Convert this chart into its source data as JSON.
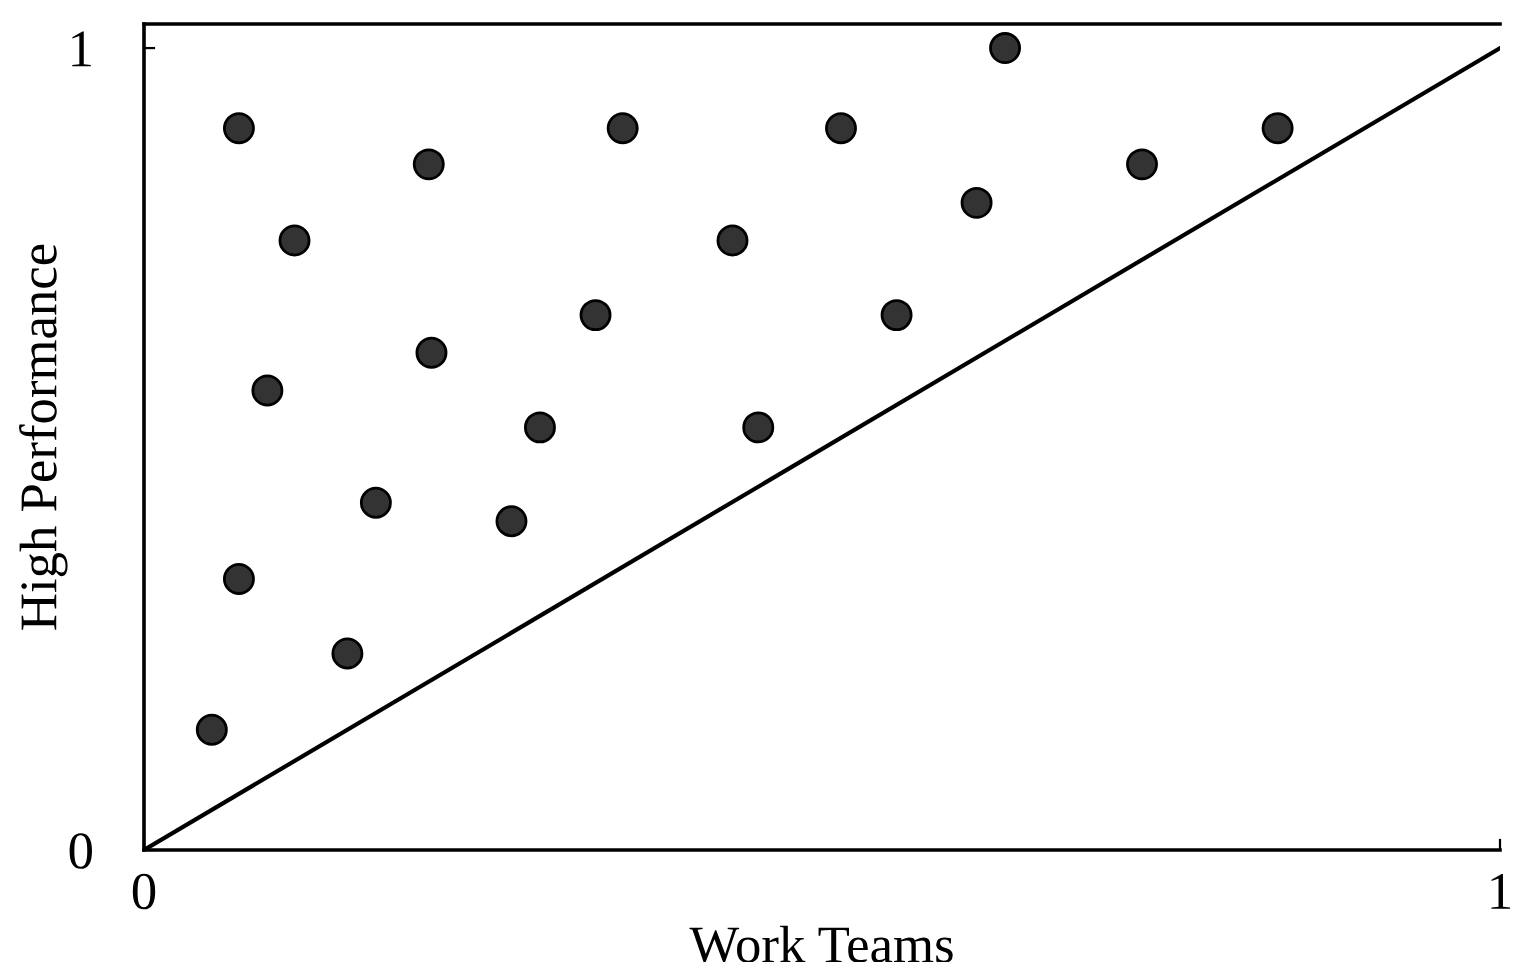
{
  "chart_data": {
    "type": "scatter",
    "xlabel": "Work Teams",
    "ylabel": "High Performance",
    "xlim": [
      0,
      1
    ],
    "ylim": [
      0,
      1.03
    ],
    "xticks": [
      0,
      1
    ],
    "yticks": [
      0,
      1
    ],
    "grid": false,
    "marker": "circle",
    "series": [
      {
        "color": "#333333",
        "x": [
          0.07,
          0.21,
          0.353,
          0.514,
          0.635,
          0.736,
          0.836,
          0.111,
          0.434,
          0.614,
          0.333,
          0.555,
          0.091,
          0.212,
          0.292,
          0.453,
          0.171,
          0.271,
          0.07,
          0.15,
          0.05
        ],
        "values": [
          0.9,
          0.855,
          0.9,
          0.9,
          1.0,
          0.855,
          0.9,
          0.76,
          0.76,
          0.807,
          0.667,
          0.667,
          0.573,
          0.62,
          0.527,
          0.527,
          0.433,
          0.41,
          0.338,
          0.245,
          0.15
        ]
      },
      {
        "type": "line",
        "color": "#000000",
        "x": [
          0,
          1
        ],
        "values": [
          0,
          1
        ],
        "marker": "none",
        "line_style": "solid"
      }
    ]
  }
}
